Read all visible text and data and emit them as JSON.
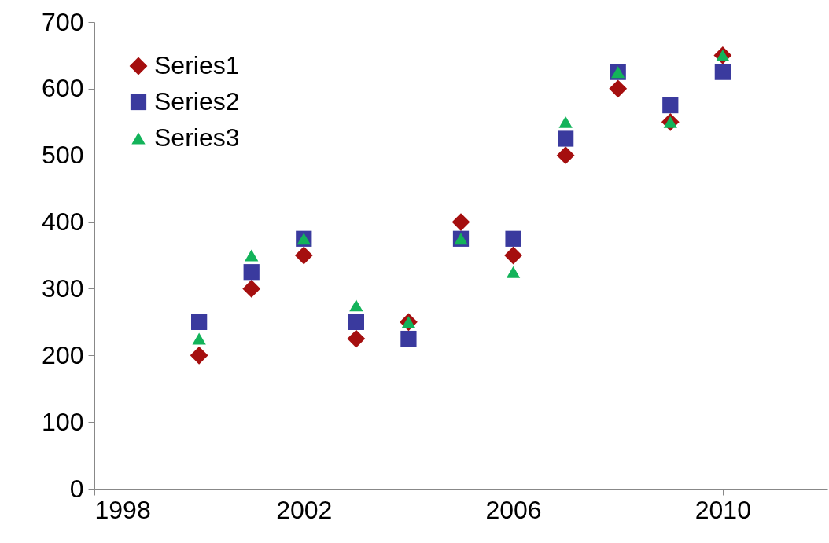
{
  "chart_data": {
    "type": "scatter",
    "x": [
      2000,
      2001,
      2002,
      2003,
      2004,
      2005,
      2006,
      2007,
      2008,
      2009,
      2010
    ],
    "series": [
      {
        "name": "Series1",
        "color": "#a50f0f",
        "marker": "diamond",
        "values": [
          200,
          300,
          350,
          225,
          250,
          400,
          350,
          500,
          600,
          550,
          650
        ]
      },
      {
        "name": "Series2",
        "color": "#3a3a9e",
        "marker": "square",
        "values": [
          250,
          325,
          375,
          250,
          225,
          375,
          375,
          525,
          625,
          575,
          625
        ]
      },
      {
        "name": "Series3",
        "color": "#13b35a",
        "marker": "triangle",
        "values": [
          225,
          350,
          375,
          275,
          250,
          375,
          325,
          550,
          625,
          550,
          650
        ]
      }
    ],
    "xlim": [
      1998,
      2012
    ],
    "xticks": [
      1998,
      2002,
      2006,
      2010
    ],
    "ylim": [
      0,
      700
    ],
    "yticks": [
      0,
      100,
      200,
      300,
      400,
      500,
      600,
      700
    ],
    "grid": false,
    "legend": "top left"
  }
}
